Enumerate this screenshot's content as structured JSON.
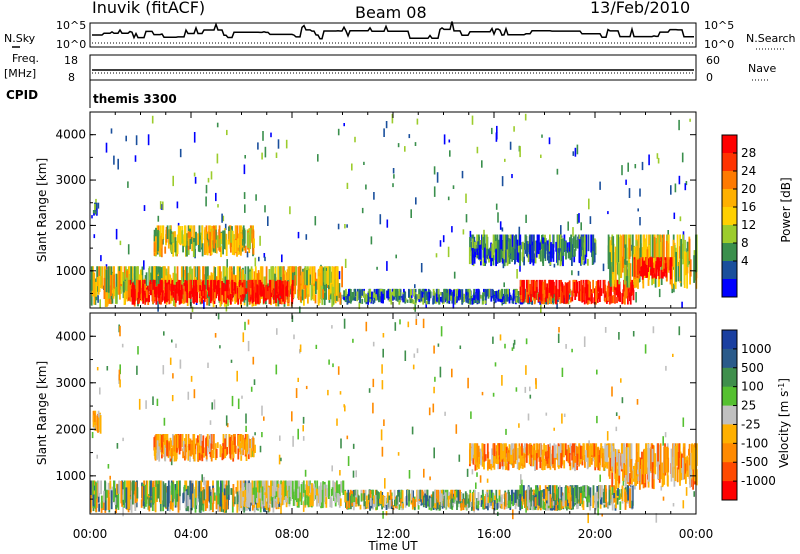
{
  "header": {
    "station": "Inuvik (fitACF)",
    "beam": "Beam 08",
    "date": "13/Feb/2010"
  },
  "top_panels": {
    "nsky_label": "N.Sky",
    "nsearch_label": "N.Search",
    "freq_label": "Freq.",
    "freq_unit": "[MHz]",
    "nave_label": "Nave",
    "cpid_label": "CPID",
    "cpid_value": "themis 3300",
    "noise_ticks_left": [
      "10^5",
      "10^0"
    ],
    "noise_ticks_right": [
      "10^5",
      "10^0"
    ],
    "freq_ticks": [
      "18",
      "8"
    ],
    "nave_ticks": [
      "60",
      "0"
    ]
  },
  "chart_data": [
    {
      "type": "heatmap",
      "name": "power",
      "ylabel": "Slant Range [km]",
      "xlabel": "",
      "colorbar_label": "Power [dB]",
      "colorbar_ticks": [
        "28",
        "24",
        "20",
        "16",
        "12",
        "8",
        "4"
      ],
      "colorbar_colors": [
        "#ff0000",
        "#ff3300",
        "#ff7a00",
        "#ffb000",
        "#ffd000",
        "#9ccc2c",
        "#3a8f4c",
        "#1a4f9c",
        "#0000ff"
      ],
      "yticks": [
        "4000",
        "3000",
        "2000",
        "1000"
      ],
      "ylim": [
        180,
        4500
      ],
      "xlim": [
        "00:00",
        "24:00"
      ],
      "echo_regions": [
        {
          "t_start": 0.1,
          "t_end": 0.3,
          "r_min": 2200,
          "r_max": 2500,
          "level": "weak"
        },
        {
          "t_start": 0.0,
          "t_end": 10.0,
          "r_min": 200,
          "r_max": 1100,
          "level": "medium"
        },
        {
          "t_start": 1.5,
          "t_end": 8.0,
          "r_min": 250,
          "r_max": 800,
          "level": "strong"
        },
        {
          "t_start": 2.5,
          "t_end": 6.5,
          "r_min": 1300,
          "r_max": 2000,
          "level": "medium"
        },
        {
          "t_start": 10.0,
          "t_end": 19.0,
          "r_min": 250,
          "r_max": 600,
          "level": "weak"
        },
        {
          "t_start": 15.0,
          "t_end": 20.0,
          "r_min": 1100,
          "r_max": 1800,
          "level": "weak"
        },
        {
          "t_start": 17.0,
          "t_end": 21.5,
          "r_min": 250,
          "r_max": 800,
          "level": "strong"
        },
        {
          "t_start": 20.5,
          "t_end": 24.0,
          "r_min": 600,
          "r_max": 1800,
          "level": "medium"
        },
        {
          "t_start": 21.5,
          "t_end": 23.0,
          "r_min": 800,
          "r_max": 1300,
          "level": "strong"
        }
      ]
    },
    {
      "type": "heatmap",
      "name": "velocity",
      "ylabel": "Slant Range [km]",
      "xlabel": "Time UT",
      "colorbar_label": "Velocity [m s",
      "colorbar_label_sup": "-1",
      "colorbar_label_end": "]",
      "colorbar_ticks": [
        "1000",
        "500",
        "100",
        "25",
        "-25",
        "-100",
        "-500",
        "-1000"
      ],
      "colorbar_colors": [
        "#1a3fa0",
        "#2a5a8a",
        "#3f8f4c",
        "#55c030",
        "#c0c0c0",
        "#ffb000",
        "#ff8a00",
        "#ff4a00",
        "#ff0000"
      ],
      "yticks": [
        "4000",
        "3000",
        "2000",
        "1000"
      ],
      "ylim": [
        180,
        4500
      ],
      "xticks": [
        "00:00",
        "04:00",
        "08:00",
        "12:00",
        "16:00",
        "20:00",
        "00:00"
      ],
      "xlim": [
        "00:00",
        "24:00"
      ],
      "echo_regions": [
        {
          "t_start": 0.1,
          "t_end": 0.4,
          "r_min": 1900,
          "r_max": 2400,
          "level": "neg"
        },
        {
          "t_start": 0.0,
          "t_end": 7.5,
          "r_min": 200,
          "r_max": 900,
          "level": "mixed"
        },
        {
          "t_start": 2.5,
          "t_end": 6.5,
          "r_min": 1300,
          "r_max": 1900,
          "level": "neg"
        },
        {
          "t_start": 6.0,
          "t_end": 10.0,
          "r_min": 300,
          "r_max": 900,
          "level": "zero"
        },
        {
          "t_start": 10.0,
          "t_end": 19.0,
          "r_min": 250,
          "r_max": 700,
          "level": "mixed"
        },
        {
          "t_start": 15.0,
          "t_end": 20.5,
          "r_min": 1100,
          "r_max": 1700,
          "level": "neg"
        },
        {
          "t_start": 17.0,
          "t_end": 21.5,
          "r_min": 250,
          "r_max": 800,
          "level": "mixed"
        },
        {
          "t_start": 20.5,
          "t_end": 24.0,
          "r_min": 700,
          "r_max": 1700,
          "level": "neg"
        }
      ]
    }
  ]
}
